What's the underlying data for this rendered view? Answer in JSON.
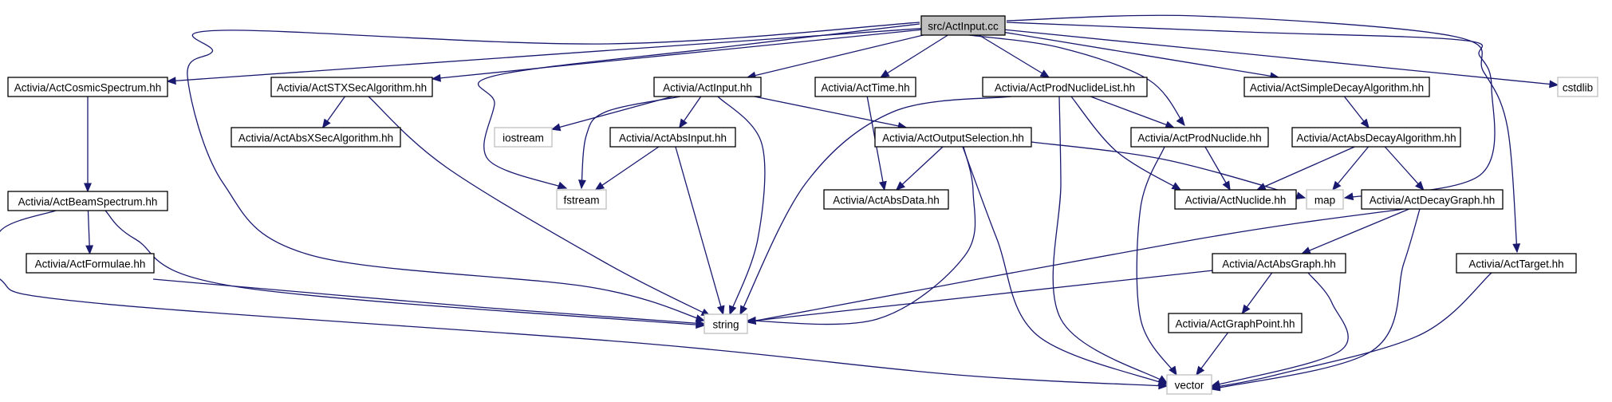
{
  "title": "",
  "colors": {
    "edge": "#191970",
    "root_fill": "#bfbfbf",
    "node_border": "#000000",
    "external_border": "#bfbfbf",
    "node_fill": "#ffffff"
  },
  "nodes": [
    {
      "id": "root",
      "label": "src/ActInput.cc",
      "kind": "root"
    },
    {
      "id": "cosmic",
      "label": "Activia/ActCosmicSpectrum.hh",
      "kind": "header"
    },
    {
      "id": "stx",
      "label": "Activia/ActSTXSecAlgorithm.hh",
      "kind": "header"
    },
    {
      "id": "input",
      "label": "Activia/ActInput.hh",
      "kind": "header"
    },
    {
      "id": "time",
      "label": "Activia/ActTime.hh",
      "kind": "header"
    },
    {
      "id": "prodlist",
      "label": "Activia/ActProdNuclideList.hh",
      "kind": "header"
    },
    {
      "id": "simpledecay",
      "label": "Activia/ActSimpleDecayAlgorithm.hh",
      "kind": "header"
    },
    {
      "id": "cstdlib",
      "label": "cstdlib",
      "kind": "external"
    },
    {
      "id": "absxsec",
      "label": "Activia/ActAbsXSecAlgorithm.hh",
      "kind": "header"
    },
    {
      "id": "iostream",
      "label": "iostream",
      "kind": "external"
    },
    {
      "id": "absinput",
      "label": "Activia/ActAbsInput.hh",
      "kind": "header"
    },
    {
      "id": "outsel",
      "label": "Activia/ActOutputSelection.hh",
      "kind": "header"
    },
    {
      "id": "prodnuclide",
      "label": "Activia/ActProdNuclide.hh",
      "kind": "header"
    },
    {
      "id": "absdecay",
      "label": "Activia/ActAbsDecayAlgorithm.hh",
      "kind": "header"
    },
    {
      "id": "beam",
      "label": "Activia/ActBeamSpectrum.hh",
      "kind": "header"
    },
    {
      "id": "fstream",
      "label": "fstream",
      "kind": "external"
    },
    {
      "id": "absdata",
      "label": "Activia/ActAbsData.hh",
      "kind": "header"
    },
    {
      "id": "nuclide",
      "label": "Activia/ActNuclide.hh",
      "kind": "header"
    },
    {
      "id": "map",
      "label": "map",
      "kind": "external"
    },
    {
      "id": "decaygraph",
      "label": "Activia/ActDecayGraph.hh",
      "kind": "header"
    },
    {
      "id": "formulae",
      "label": "Activia/ActFormulae.hh",
      "kind": "header"
    },
    {
      "id": "absgraph",
      "label": "Activia/ActAbsGraph.hh",
      "kind": "header"
    },
    {
      "id": "target",
      "label": "Activia/ActTarget.hh",
      "kind": "header"
    },
    {
      "id": "string",
      "label": "string",
      "kind": "external"
    },
    {
      "id": "graphpoint",
      "label": "Activia/ActGraphPoint.hh",
      "kind": "header"
    },
    {
      "id": "vector",
      "label": "vector",
      "kind": "external"
    }
  ],
  "edges": [
    [
      "root",
      "cosmic"
    ],
    [
      "root",
      "stx"
    ],
    [
      "root",
      "input"
    ],
    [
      "root",
      "time"
    ],
    [
      "root",
      "prodlist"
    ],
    [
      "root",
      "simpledecay"
    ],
    [
      "root",
      "cstdlib"
    ],
    [
      "root",
      "string"
    ],
    [
      "root",
      "fstream"
    ],
    [
      "root",
      "prodnuclide"
    ],
    [
      "root",
      "map"
    ],
    [
      "root",
      "target"
    ],
    [
      "cosmic",
      "beam"
    ],
    [
      "stx",
      "absxsec"
    ],
    [
      "stx",
      "string"
    ],
    [
      "input",
      "iostream"
    ],
    [
      "input",
      "absinput"
    ],
    [
      "input",
      "outsel"
    ],
    [
      "input",
      "fstream"
    ],
    [
      "input",
      "string"
    ],
    [
      "time",
      "absdata"
    ],
    [
      "prodlist",
      "prodnuclide"
    ],
    [
      "prodlist",
      "nuclide"
    ],
    [
      "prodlist",
      "string"
    ],
    [
      "prodlist",
      "vector"
    ],
    [
      "simpledecay",
      "absdecay"
    ],
    [
      "absinput",
      "fstream"
    ],
    [
      "absinput",
      "string"
    ],
    [
      "outsel",
      "absdata"
    ],
    [
      "outsel",
      "map"
    ],
    [
      "outsel",
      "string"
    ],
    [
      "outsel",
      "vector"
    ],
    [
      "prodnuclide",
      "nuclide"
    ],
    [
      "prodnuclide",
      "vector"
    ],
    [
      "absdecay",
      "nuclide"
    ],
    [
      "absdecay",
      "map"
    ],
    [
      "absdecay",
      "decaygraph"
    ],
    [
      "beam",
      "formulae"
    ],
    [
      "beam",
      "string"
    ],
    [
      "beam",
      "vector"
    ],
    [
      "decaygraph",
      "absgraph"
    ],
    [
      "decaygraph",
      "string"
    ],
    [
      "decaygraph",
      "vector"
    ],
    [
      "formulae",
      "string"
    ],
    [
      "absgraph",
      "graphpoint"
    ],
    [
      "absgraph",
      "string"
    ],
    [
      "absgraph",
      "vector"
    ],
    [
      "target",
      "vector"
    ],
    [
      "graphpoint",
      "vector"
    ]
  ]
}
